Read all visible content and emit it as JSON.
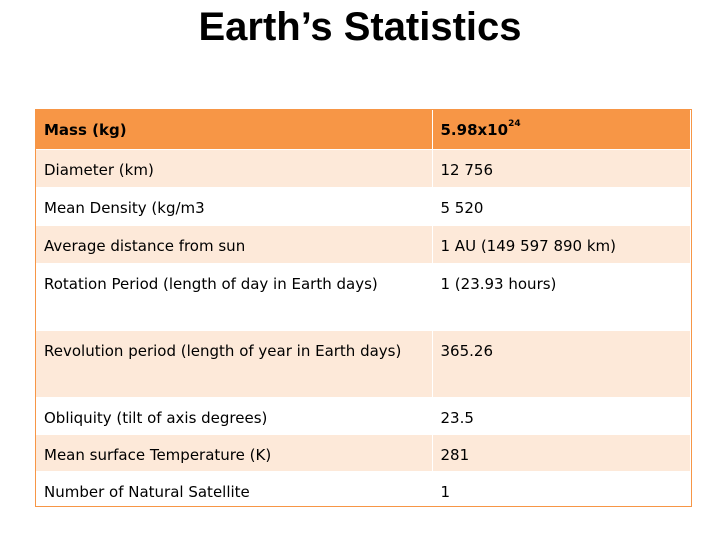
{
  "title": "Earth’s Statistics",
  "table": {
    "rows": [
      {
        "label": "Mass (kg)",
        "value": "5.98x10",
        "value_sup": "24"
      },
      {
        "label": "Diameter (km)",
        "value": "12 756"
      },
      {
        "label": "Mean Density (kg/m",
        "label_sup": "3",
        "value": "5 520"
      },
      {
        "label": "Average distance from sun",
        "value": "1 AU (149 597 890 km)"
      },
      {
        "label": "Rotation Period (length of day in Earth days)",
        "value": "1 (23.93 hours)"
      },
      {
        "label": "Revolution period (length of year in Earth days)",
        "value": "365.26"
      },
      {
        "label": "Obliquity (tilt of axis degrees)",
        "value": "23.5"
      },
      {
        "label": "Mean surface Temperature (K)",
        "value": "281"
      },
      {
        "label": "Number of Natural Satellite",
        "value": "1"
      }
    ]
  },
  "colors": {
    "header_fill": "#f79646",
    "band_fill": "#fde9d9",
    "border": "#f79646"
  }
}
